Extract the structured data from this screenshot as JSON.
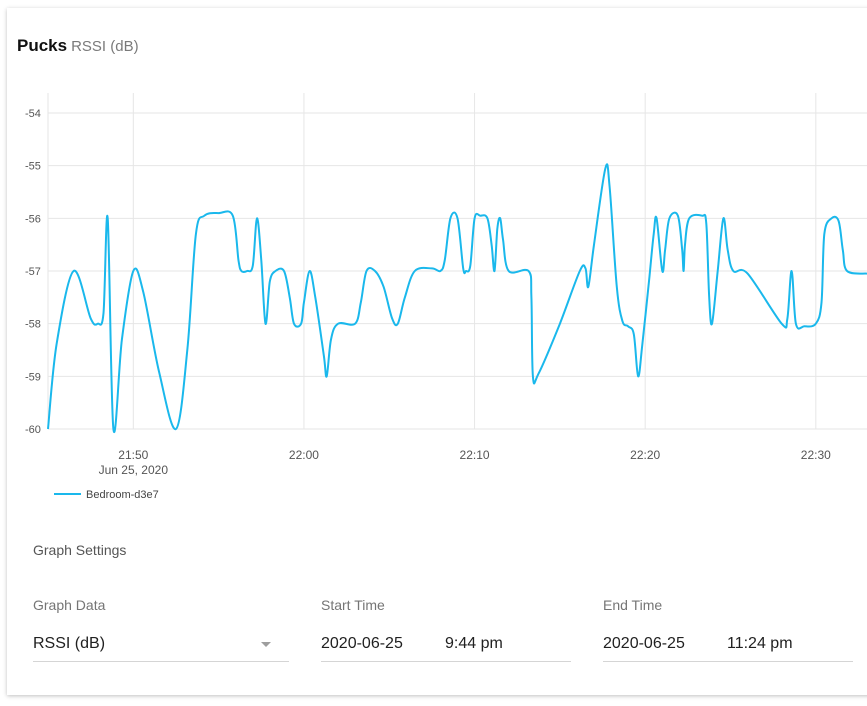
{
  "header": {
    "title": "Pucks",
    "subtitle": "RSSI (dB)"
  },
  "colors": {
    "series": "#1ab8ec",
    "grid": "#e6e6e6",
    "tick_text": "#555555"
  },
  "chart_data": {
    "type": "line",
    "title": "",
    "ylabel": "",
    "xlabel": "",
    "ylim": [
      -60,
      -54
    ],
    "yticks": [
      -54,
      -55,
      -56,
      -57,
      -58,
      -59,
      -60
    ],
    "xlim": [
      "21:45",
      "22:33"
    ],
    "xticks": [
      {
        "time": "21:50",
        "label": "21:50",
        "sublabel": "Jun 25, 2020"
      },
      {
        "time": "22:00",
        "label": "22:00"
      },
      {
        "time": "22:10",
        "label": "22:10"
      },
      {
        "time": "22:20",
        "label": "22:20"
      },
      {
        "time": "22:30",
        "label": "22:30"
      }
    ],
    "grid": true,
    "legend": "bottom-left",
    "series": [
      {
        "name": "Bedroom-d3e7",
        "points": [
          [
            "21:45:00",
            -60
          ],
          [
            "21:45:30",
            -58.4
          ],
          [
            "21:46:30",
            -57.0
          ],
          [
            "21:47:30",
            -57.9
          ],
          [
            "21:47:55",
            -58.0
          ],
          [
            "21:48:15",
            -57.8
          ],
          [
            "21:48:30",
            -56.0
          ],
          [
            "21:48:50",
            -60.0
          ],
          [
            "21:49:20",
            -58.3
          ],
          [
            "21:50:00",
            -57.0
          ],
          [
            "21:50:35",
            -57.4
          ],
          [
            "21:51:30",
            -58.9
          ],
          [
            "21:52:30",
            -60.0
          ],
          [
            "21:53:10",
            -58.5
          ],
          [
            "21:53:40",
            -56.3
          ],
          [
            "21:54:10",
            -55.95
          ],
          [
            "21:55:00",
            -55.9
          ],
          [
            "21:55:50",
            -55.95
          ],
          [
            "21:56:10",
            -56.8
          ],
          [
            "21:56:20",
            -57.0
          ],
          [
            "21:56:40",
            -57.0
          ],
          [
            "21:57:00",
            -56.9
          ],
          [
            "21:57:15",
            -56.0
          ],
          [
            "21:57:30",
            -56.8
          ],
          [
            "21:57:45",
            -58.0
          ],
          [
            "21:58:00",
            -57.2
          ],
          [
            "21:58:20",
            -57.0
          ],
          [
            "21:58:50",
            -57.0
          ],
          [
            "21:59:10",
            -57.5
          ],
          [
            "21:59:25",
            -58.0
          ],
          [
            "21:59:50",
            -58.0
          ],
          [
            "22:00:00",
            -57.6
          ],
          [
            "22:00:20",
            -57.0
          ],
          [
            "22:00:40",
            -57.5
          ],
          [
            "22:01:10",
            -58.6
          ],
          [
            "22:01:20",
            -59.0
          ],
          [
            "22:01:35",
            -58.3
          ],
          [
            "22:02:00",
            -58.0
          ],
          [
            "22:03:00",
            -58.0
          ],
          [
            "22:03:20",
            -57.6
          ],
          [
            "22:03:40",
            -57.0
          ],
          [
            "22:04:10",
            -57.0
          ],
          [
            "22:04:40",
            -57.3
          ],
          [
            "22:05:10",
            -57.9
          ],
          [
            "22:05:30",
            -58.0
          ],
          [
            "22:05:55",
            -57.5
          ],
          [
            "22:06:30",
            -57.0
          ],
          [
            "22:07:30",
            -56.95
          ],
          [
            "22:08:00",
            -57.0
          ],
          [
            "22:08:15",
            -56.8
          ],
          [
            "22:08:35",
            -56.0
          ],
          [
            "22:09:00",
            -56.0
          ],
          [
            "22:09:20",
            -56.95
          ],
          [
            "22:09:30",
            -57.0
          ],
          [
            "22:09:45",
            -56.9
          ],
          [
            "22:10:00",
            -56.0
          ],
          [
            "22:10:20",
            -55.95
          ],
          [
            "22:10:45",
            -56.0
          ],
          [
            "22:11:00",
            -56.5
          ],
          [
            "22:11:10",
            -57.0
          ],
          [
            "22:11:20",
            -56.2
          ],
          [
            "22:11:30",
            -56.0
          ],
          [
            "22:11:40",
            -56.4
          ],
          [
            "22:12:00",
            -57.0
          ],
          [
            "22:13:10",
            -57.0
          ],
          [
            "22:13:20",
            -57.5
          ],
          [
            "22:13:25",
            -59.0
          ],
          [
            "22:13:45",
            -58.95
          ],
          [
            "22:15:00",
            -58.0
          ],
          [
            "22:16:10",
            -57.0
          ],
          [
            "22:16:30",
            -56.95
          ],
          [
            "22:16:40",
            -57.3
          ],
          [
            "22:17:00",
            -56.5
          ],
          [
            "22:17:40",
            -55.05
          ],
          [
            "22:17:55",
            -55.4
          ],
          [
            "22:18:20",
            -57.3
          ],
          [
            "22:18:40",
            -57.95
          ],
          [
            "22:19:00",
            -58.05
          ],
          [
            "22:19:20",
            -58.2
          ],
          [
            "22:19:35",
            -59.0
          ],
          [
            "22:19:50",
            -58.4
          ],
          [
            "22:20:15",
            -57.1
          ],
          [
            "22:20:30",
            -56.3
          ],
          [
            "22:20:40",
            -56.0
          ],
          [
            "22:21:00",
            -57.0
          ],
          [
            "22:21:10",
            -56.6
          ],
          [
            "22:21:25",
            -56.0
          ],
          [
            "22:21:55",
            -55.95
          ],
          [
            "22:22:10",
            -56.6
          ],
          [
            "22:22:15",
            -57.0
          ],
          [
            "22:22:20",
            -56.5
          ],
          [
            "22:22:35",
            -56.0
          ],
          [
            "22:23:20",
            -55.95
          ],
          [
            "22:23:35",
            -56.1
          ],
          [
            "22:23:45",
            -57.5
          ],
          [
            "22:23:55",
            -58.0
          ],
          [
            "22:24:15",
            -57.0
          ],
          [
            "22:24:35",
            -56.0
          ],
          [
            "22:24:50",
            -56.6
          ],
          [
            "22:25:10",
            -57.0
          ],
          [
            "22:26:00",
            -57.05
          ],
          [
            "22:28:00",
            -58.0
          ],
          [
            "22:28:20",
            -57.9
          ],
          [
            "22:28:35",
            -57.0
          ],
          [
            "22:28:50",
            -58.0
          ],
          [
            "22:29:20",
            -58.05
          ],
          [
            "22:30:00",
            -58.0
          ],
          [
            "22:30:20",
            -57.6
          ],
          [
            "22:30:30",
            -56.3
          ],
          [
            "22:30:55",
            -56.0
          ],
          [
            "22:31:20",
            -56.05
          ],
          [
            "22:31:35",
            -56.6
          ],
          [
            "22:31:50",
            -57.0
          ],
          [
            "22:33:00",
            -57.05
          ]
        ]
      }
    ]
  },
  "settings": {
    "title": "Graph Settings",
    "graph_data": {
      "label": "Graph Data",
      "value": "RSSI (dB)"
    },
    "start_time": {
      "label": "Start Time",
      "date": "2020-06-25",
      "time": "9:44 pm"
    },
    "end_time": {
      "label": "End Time",
      "date": "2020-06-25",
      "time": "11:24 pm"
    }
  }
}
